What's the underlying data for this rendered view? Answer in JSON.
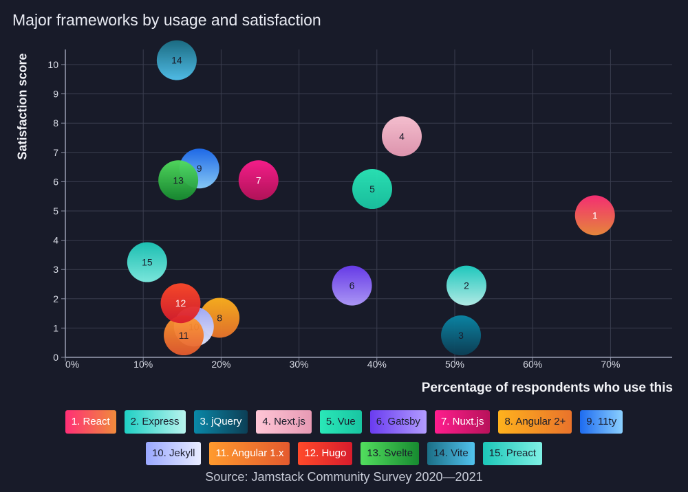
{
  "title": "Major frameworks by usage and satisfaction",
  "source": "Source: Jamstack Community Survey 2020—2021",
  "chart_data": {
    "type": "scatter",
    "title": "Major frameworks by usage and satisfaction",
    "xlabel": "Percentage of respondents who use this",
    "ylabel": "Satisfaction score",
    "xlim": [
      0,
      77
    ],
    "ylim": [
      0,
      10.5
    ],
    "x_ticks": [
      "0%",
      "10%",
      "20%",
      "30%",
      "40%",
      "50%",
      "60%",
      "70%"
    ],
    "y_ticks": [
      "0",
      "1",
      "2",
      "3",
      "4",
      "5",
      "6",
      "7",
      "8",
      "9",
      "10"
    ],
    "grid": true,
    "points": [
      {
        "id": "1",
        "name": "1. React",
        "x": 68.0,
        "y": 4.85,
        "colors": [
          "#ff2f76",
          "#f08b3c"
        ]
      },
      {
        "id": "2",
        "name": "2. Express",
        "x": 51.5,
        "y": 2.45,
        "colors": [
          "#1fd0c4",
          "#b8f4ee"
        ]
      },
      {
        "id": "3",
        "name": "3. jQuery",
        "x": 50.8,
        "y": 0.75,
        "colors": [
          "#0a88a8",
          "#0c3f56"
        ]
      },
      {
        "id": "4",
        "name": "4. Next.js",
        "x": 43.2,
        "y": 7.55,
        "colors": [
          "#ffc6d6",
          "#e79ab4"
        ]
      },
      {
        "id": "5",
        "name": "5. Vue",
        "x": 39.4,
        "y": 5.75,
        "colors": [
          "#2ae8b8",
          "#19c5a2"
        ]
      },
      {
        "id": "6",
        "name": "6. Gatsby",
        "x": 36.8,
        "y": 2.45,
        "colors": [
          "#6a3cf0",
          "#b29cff"
        ]
      },
      {
        "id": "7",
        "name": "7. Nuxt.js",
        "x": 24.8,
        "y": 6.05,
        "colors": [
          "#ff1d8e",
          "#b8125a"
        ]
      },
      {
        "id": "8",
        "name": "8. Angular 2+",
        "x": 19.8,
        "y": 1.35,
        "colors": [
          "#ffb21d",
          "#e9732b"
        ]
      },
      {
        "id": "9",
        "name": "9. 11ty",
        "x": 17.2,
        "y": 6.45,
        "colors": [
          "#1e6cf0",
          "#8bd0ff"
        ]
      },
      {
        "id": "10",
        "name": "10. Jekyll",
        "x": 16.5,
        "y": 1.05,
        "colors": [
          "#9aa8ff",
          "#e8ecff"
        ]
      },
      {
        "id": "11",
        "name": "11. Angular 1.x",
        "x": 15.2,
        "y": 0.75,
        "colors": [
          "#ff9a2e",
          "#e45a2e"
        ]
      },
      {
        "id": "12",
        "name": "12. Hugo",
        "x": 14.8,
        "y": 1.85,
        "colors": [
          "#ff4a2a",
          "#d81c2c"
        ]
      },
      {
        "id": "13",
        "name": "13. Svelte",
        "x": 14.5,
        "y": 6.05,
        "colors": [
          "#52de5e",
          "#178a30"
        ]
      },
      {
        "id": "14",
        "name": "14. Vite",
        "x": 14.3,
        "y": 10.15,
        "colors": [
          "#1b6f86",
          "#52c3ee"
        ]
      },
      {
        "id": "15",
        "name": "15. Preact",
        "x": 10.5,
        "y": 3.25,
        "colors": [
          "#1cc7b8",
          "#7ff0e4"
        ]
      }
    ]
  }
}
